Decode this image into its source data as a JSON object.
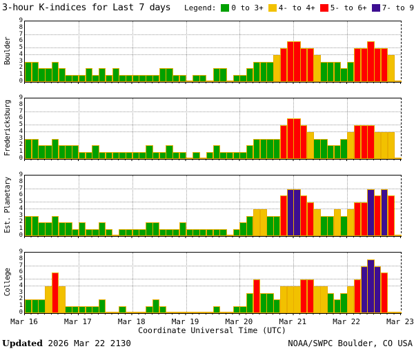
{
  "title": "3-hour K-indices for Last 7 days",
  "legend": {
    "label": "Legend:",
    "items": [
      {
        "label": "0 to 3+",
        "color": "#00a000"
      },
      {
        "label": "4- to 4+",
        "color": "#f2c100"
      },
      {
        "label": "5- to 6+",
        "color": "#ff0000"
      },
      {
        "label": "7- to 9",
        "color": "#3d0e91"
      }
    ]
  },
  "chart_data": {
    "type": "bar",
    "title": "3-hour K-indices for Last 7 days",
    "xlabel": "Coordinate Universal Time (UTC)",
    "ylim": [
      0,
      9
    ],
    "y_ticks": [
      0,
      1,
      2,
      3,
      4,
      5,
      6,
      7,
      8,
      9
    ],
    "y_gridlines": [
      4,
      5,
      7
    ],
    "x_tick_labels": [
      "Mar 16",
      "Mar 17",
      "Mar 18",
      "Mar 19",
      "Mar 20",
      "Mar 21",
      "Mar 22",
      "Mar 23"
    ],
    "bars_per_day": 8,
    "bar_interval_hours": 3,
    "legend_position": "top-right",
    "grid": "dotted",
    "color_rules": {
      "green_max": 3,
      "yellow_value": 4,
      "red_min": 5,
      "red_max": 6,
      "purple_min": 7
    },
    "colors": {
      "green": "#00a000",
      "yellow": "#f2c100",
      "red": "#ff0000",
      "purple": "#3d0e91",
      "bar_border": "#e9ae00"
    },
    "series": [
      {
        "name": "Boulder",
        "values": [
          3,
          3,
          2,
          2,
          3,
          2,
          1,
          1,
          1,
          2,
          1,
          2,
          1,
          2,
          1,
          1,
          1,
          1,
          1,
          1,
          2,
          2,
          1,
          1,
          0,
          1,
          1,
          0,
          2,
          2,
          0,
          1,
          1,
          2,
          3,
          3,
          3,
          4,
          5,
          6,
          6,
          5,
          5,
          4,
          3,
          3,
          3,
          2,
          3,
          5,
          5,
          6,
          5,
          5,
          4,
          0
        ]
      },
      {
        "name": "Fredericksburg",
        "values": [
          3,
          3,
          2,
          2,
          3,
          2,
          2,
          2,
          1,
          1,
          2,
          1,
          1,
          1,
          1,
          1,
          1,
          1,
          2,
          1,
          1,
          2,
          1,
          1,
          0,
          1,
          0,
          1,
          2,
          1,
          1,
          1,
          1,
          2,
          3,
          3,
          3,
          3,
          5,
          6,
          6,
          5,
          4,
          3,
          3,
          2,
          2,
          3,
          4,
          5,
          5,
          5,
          4,
          4,
          4,
          0
        ]
      },
      {
        "name": "Est. Planetary",
        "values": [
          3,
          3,
          2,
          2,
          3,
          2,
          2,
          1,
          2,
          1,
          1,
          2,
          1,
          0,
          1,
          1,
          1,
          1,
          2,
          2,
          1,
          1,
          1,
          2,
          1,
          1,
          1,
          1,
          1,
          1,
          0,
          1,
          2,
          3,
          4,
          4,
          3,
          3,
          6,
          7,
          7,
          6,
          5,
          4,
          3,
          3,
          4,
          3,
          4,
          5,
          5,
          7,
          6,
          7,
          6,
          0
        ]
      },
      {
        "name": "College",
        "values": [
          2,
          2,
          2,
          4,
          6,
          4,
          1,
          1,
          1,
          1,
          1,
          2,
          0,
          0,
          1,
          0,
          0,
          0,
          1,
          2,
          1,
          0,
          0,
          0,
          0,
          0,
          0,
          0,
          1,
          0,
          0,
          1,
          1,
          3,
          5,
          3,
          3,
          2,
          4,
          4,
          4,
          5,
          5,
          4,
          4,
          3,
          2,
          3,
          4,
          5,
          7,
          8,
          7,
          6,
          0,
          0
        ]
      }
    ]
  },
  "footer": {
    "updated_label": "Updated",
    "updated_datetime": "2026 Mar 22 2130",
    "credit": "NOAA/SWPC Boulder, CO USA"
  }
}
